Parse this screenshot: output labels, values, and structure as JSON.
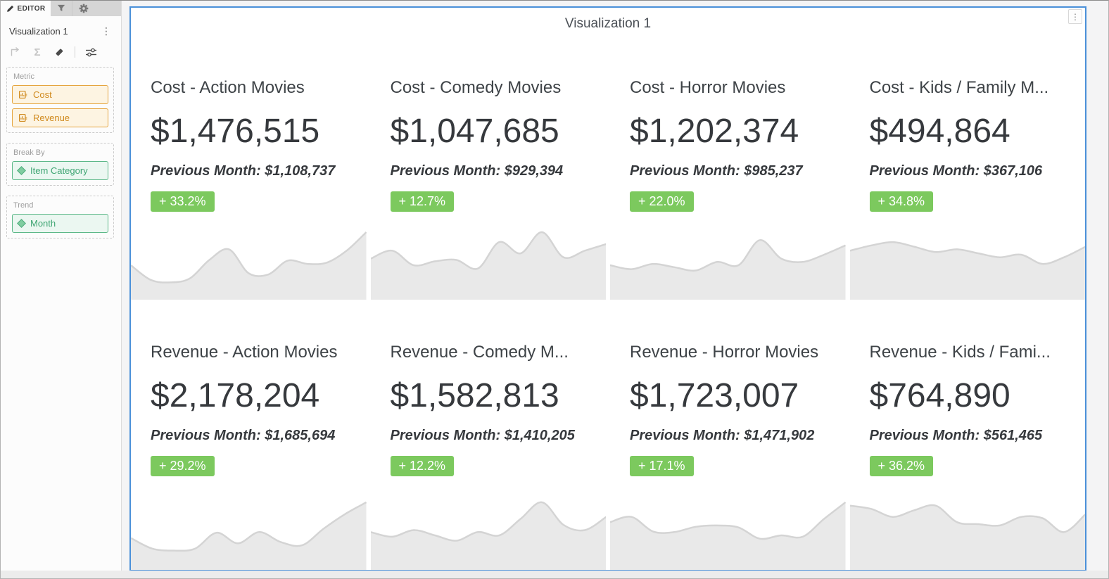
{
  "colors": {
    "viz_border": "#4a90d9",
    "badge_green": "#7cc95e",
    "metric_pill_orange": "#d08a1e",
    "attr_pill_green": "#3fa573",
    "spark_fill": "#e9e9e9",
    "spark_line": "#d4d4d4"
  },
  "editor_panel": {
    "tabs": {
      "editor_label": "EDITOR"
    },
    "title": "Visualization 1",
    "kebab": "⋮",
    "toolbar": {
      "sigma": "Σ"
    },
    "zones": {
      "metric": {
        "label": "Metric",
        "pills": {
          "0": "Cost",
          "1": "Revenue"
        }
      },
      "break_by": {
        "label": "Break By",
        "pills": {
          "0": "Item Category"
        }
      },
      "trend": {
        "label": "Trend",
        "pills": {
          "0": "Month"
        }
      }
    }
  },
  "visualization": {
    "title": "Visualization 1",
    "menu_kebab": "⋮",
    "cards": [
      {
        "title": "Cost - Action Movies",
        "value": "$1,476,515",
        "previous": "Previous Month: $1,108,737",
        "change": "+ 33.2%",
        "spark": [
          0.5,
          0.28,
          0.24,
          0.3,
          0.58,
          0.74,
          0.38,
          0.36,
          0.57,
          0.52,
          0.54,
          0.72,
          1.0
        ]
      },
      {
        "title": "Cost - Comedy Movies",
        "value": "$1,047,685",
        "previous": "Previous Month: $929,394",
        "change": "+ 12.7%",
        "spark": [
          0.6,
          0.72,
          0.5,
          0.56,
          0.58,
          0.45,
          0.85,
          0.68,
          1.0,
          0.62,
          0.72,
          0.82
        ]
      },
      {
        "title": "Cost - Horror Movies",
        "value": "$1,202,374",
        "previous": "Previous Month: $985,237",
        "change": "+ 22.0%",
        "spark": [
          0.5,
          0.44,
          0.52,
          0.47,
          0.42,
          0.55,
          0.5,
          0.88,
          0.6,
          0.55,
          0.66,
          0.8
        ]
      },
      {
        "title": "Cost - Kids / Family M...",
        "value": "$494,864",
        "previous": "Previous Month: $367,106",
        "change": "+ 34.8%",
        "spark": [
          0.72,
          0.8,
          0.85,
          0.78,
          0.7,
          0.74,
          0.68,
          0.62,
          0.66,
          0.52,
          0.62,
          0.78
        ]
      },
      {
        "title": "Revenue - Action Movies",
        "value": "$2,178,204",
        "previous": "Previous Month: $1,685,694",
        "change": "+ 29.2%",
        "spark": [
          0.46,
          0.3,
          0.27,
          0.3,
          0.54,
          0.38,
          0.55,
          0.4,
          0.35,
          0.6,
          0.82,
          1.0
        ]
      },
      {
        "title": "Revenue - Comedy M...",
        "value": "$1,582,813",
        "previous": "Previous Month: $1,410,205",
        "change": "+ 12.2%",
        "spark": [
          0.55,
          0.48,
          0.58,
          0.5,
          0.42,
          0.55,
          0.5,
          0.75,
          1.0,
          0.66,
          0.58,
          0.78
        ]
      },
      {
        "title": "Revenue - Horror Movies",
        "value": "$1,723,007",
        "previous": "Previous Month: $1,471,902",
        "change": "+ 17.1%",
        "spark": [
          0.7,
          0.78,
          0.56,
          0.55,
          0.63,
          0.65,
          0.62,
          0.45,
          0.5,
          0.48,
          0.75,
          1.0
        ]
      },
      {
        "title": "Revenue - Kids / Fami...",
        "value": "$764,890",
        "previous": "Previous Month: $561,465",
        "change": "+ 36.2%",
        "spark": [
          0.95,
          0.9,
          0.78,
          0.88,
          0.95,
          0.7,
          0.67,
          0.65,
          0.78,
          0.76,
          0.55,
          0.82
        ]
      }
    ]
  }
}
